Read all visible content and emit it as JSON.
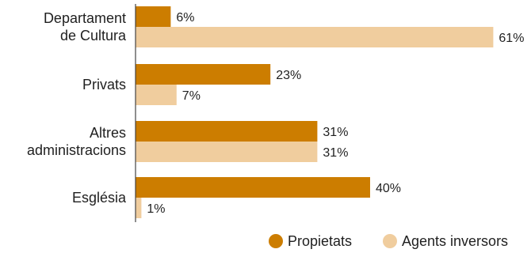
{
  "chart_data": {
    "type": "bar",
    "orientation": "horizontal",
    "categories": [
      [
        "Departament",
        "de Cultura"
      ],
      [
        "Privats"
      ],
      [
        "Altres",
        "administracions"
      ],
      [
        "Església"
      ]
    ],
    "series": [
      {
        "name": "Propietats",
        "color": "#cc7d00",
        "values": [
          6,
          23,
          31,
          40
        ],
        "labels": [
          "6%",
          "23%",
          "31%",
          "40%"
        ]
      },
      {
        "name": "Agents inversors",
        "color": "#f0cd9e",
        "values": [
          61,
          7,
          31,
          1
        ],
        "labels": [
          "61%",
          "7%",
          "31%",
          "1%"
        ]
      }
    ],
    "xlim": [
      0,
      80
    ],
    "grid": false,
    "legend": "bottom-right",
    "title": "",
    "xlabel": "",
    "ylabel": ""
  }
}
